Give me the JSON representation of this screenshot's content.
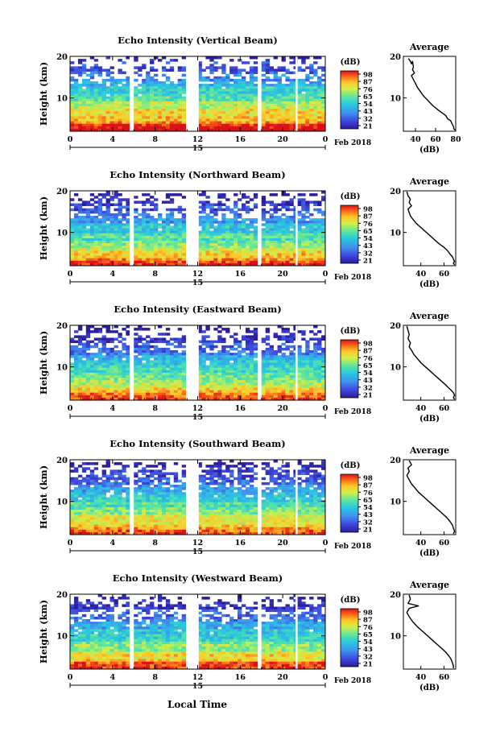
{
  "page": {
    "bottom_xlabel": "Local Time"
  },
  "chart_data": [
    {
      "type": "heatmap",
      "title": "Echo Intensity (Vertical Beam)",
      "ylabel": "Height (km)",
      "yticks": [
        "20",
        "10"
      ],
      "xticks": [
        "0",
        "4",
        "8",
        "12",
        "16",
        "20",
        "0"
      ],
      "date_tick": "15",
      "date_label": "Feb 2018",
      "colorbar": {
        "unit": "(dB)",
        "labels": [
          "98",
          "87",
          "76",
          "65",
          "54",
          "43",
          "32",
          "21"
        ]
      },
      "ylim": [
        2,
        20
      ],
      "xlim": [
        0,
        24
      ],
      "data_gaps_hours": [
        [
          5.6,
          5.9
        ],
        [
          11.0,
          12.1
        ],
        [
          17.7,
          17.9
        ],
        [
          21.2,
          21.4
        ]
      ],
      "profile": {
        "title": "Average",
        "xlabel": "(dB)",
        "xticks": [
          "40",
          "60",
          "80"
        ],
        "yticks": [
          "20",
          "10"
        ],
        "xlim": [
          28,
          80
        ],
        "ylim": [
          2,
          20
        ],
        "x": [
          33,
          35,
          36,
          37,
          38,
          37,
          39,
          36,
          38,
          40,
          42,
          45,
          48,
          52,
          55,
          58,
          62,
          66,
          70,
          72,
          75,
          76,
          77,
          78,
          78,
          80
        ],
        "y": [
          19.5,
          18.8,
          18.2,
          18.8,
          17.4,
          16.8,
          16.0,
          15.4,
          14.4,
          13.5,
          12.5,
          11.5,
          10.5,
          9.5,
          8.7,
          8.0,
          7.2,
          6.5,
          5.8,
          5.0,
          4.5,
          4.0,
          3.5,
          3.0,
          2.6,
          2.2
        ]
      }
    },
    {
      "type": "heatmap",
      "title": "Echo Intensity (Northward Beam)",
      "ylabel": "Height (km)",
      "yticks": [
        "20",
        "10"
      ],
      "xticks": [
        "0",
        "4",
        "8",
        "12",
        "16",
        "20",
        "0"
      ],
      "date_tick": "15",
      "date_label": "Feb 2018",
      "colorbar": {
        "unit": "(dB)",
        "labels": [
          "98",
          "87",
          "76",
          "65",
          "54",
          "43",
          "32",
          "21"
        ]
      },
      "ylim": [
        2,
        20
      ],
      "xlim": [
        0,
        24
      ],
      "data_gaps_hours": [
        [
          5.6,
          5.9
        ],
        [
          11.0,
          12.1
        ],
        [
          17.7,
          17.9
        ],
        [
          21.2,
          21.4
        ]
      ],
      "profile": {
        "title": "Average",
        "xlabel": "(dB)",
        "xticks": [
          "40",
          "60"
        ],
        "yticks": [
          "20",
          "10"
        ],
        "xlim": [
          25,
          70
        ],
        "ylim": [
          2,
          20
        ],
        "x": [
          28,
          29,
          31,
          30,
          32,
          29,
          30,
          31,
          33,
          36,
          40,
          44,
          48,
          52,
          56,
          60,
          63,
          65,
          67,
          68,
          69,
          68,
          69
        ],
        "y": [
          19.8,
          18.8,
          18.0,
          17.2,
          16.4,
          15.6,
          14.8,
          14.0,
          13.2,
          12.2,
          11.2,
          10.2,
          9.2,
          8.2,
          7.2,
          6.4,
          5.6,
          4.8,
          4.2,
          3.6,
          3.0,
          2.6,
          2.2
        ]
      }
    },
    {
      "type": "heatmap",
      "title": "Echo Intensity (Eastward Beam)",
      "ylabel": "Height (km)",
      "yticks": [
        "20",
        "10"
      ],
      "xticks": [
        "0",
        "4",
        "8",
        "12",
        "16",
        "20",
        "0"
      ],
      "date_tick": "15",
      "date_label": "Feb 2018",
      "colorbar": {
        "unit": "(dB)",
        "labels": [
          "98",
          "87",
          "76",
          "65",
          "54",
          "43",
          "32",
          "21"
        ]
      },
      "ylim": [
        2,
        20
      ],
      "xlim": [
        0,
        24
      ],
      "data_gaps_hours": [
        [
          5.6,
          5.9
        ],
        [
          11.0,
          12.1
        ],
        [
          17.7,
          17.9
        ],
        [
          21.2,
          21.4
        ]
      ],
      "profile": {
        "title": "Average",
        "xlabel": "(dB)",
        "xticks": [
          "40",
          "60"
        ],
        "yticks": [
          "20",
          "10"
        ],
        "xlim": [
          25,
          70
        ],
        "ylim": [
          2,
          20
        ],
        "x": [
          28,
          29,
          30,
          29,
          31,
          30,
          32,
          34,
          37,
          40,
          44,
          48,
          52,
          56,
          60,
          63,
          66,
          68,
          69,
          68,
          69
        ],
        "y": [
          19.8,
          18.8,
          17.8,
          16.8,
          15.8,
          14.8,
          14.0,
          13.0,
          12.0,
          11.0,
          10.0,
          9.0,
          8.0,
          7.0,
          6.0,
          5.2,
          4.4,
          3.8,
          3.2,
          2.6,
          2.2
        ]
      }
    },
    {
      "type": "heatmap",
      "title": "Echo Intensity (Southward Beam)",
      "ylabel": "Height (km)",
      "yticks": [
        "20",
        "10"
      ],
      "xticks": [
        "0",
        "4",
        "8",
        "12",
        "16",
        "20",
        "0"
      ],
      "date_tick": "15",
      "date_label": "Feb 2018",
      "colorbar": {
        "unit": "(dB)",
        "labels": [
          "98",
          "87",
          "76",
          "65",
          "54",
          "43",
          "32",
          "21"
        ]
      },
      "ylim": [
        2,
        20
      ],
      "xlim": [
        0,
        24
      ],
      "data_gaps_hours": [
        [
          5.6,
          5.9
        ],
        [
          11.0,
          12.1
        ],
        [
          17.7,
          17.9
        ],
        [
          21.2,
          21.4
        ]
      ],
      "profile": {
        "title": "Average",
        "xlabel": "(dB)",
        "xticks": [
          "40",
          "60"
        ],
        "yticks": [
          "20",
          "10"
        ],
        "xlim": [
          25,
          70
        ],
        "ylim": [
          2,
          20
        ],
        "x": [
          30,
          32,
          29,
          30,
          28,
          30,
          32,
          35,
          38,
          42,
          46,
          50,
          54,
          58,
          62,
          65,
          67,
          68,
          69,
          68
        ],
        "y": [
          19.8,
          18.8,
          18.0,
          17.2,
          16.2,
          15.2,
          14.2,
          13.2,
          12.2,
          11.2,
          10.2,
          9.2,
          8.2,
          7.2,
          6.2,
          5.2,
          4.4,
          3.6,
          2.8,
          2.2
        ]
      }
    },
    {
      "type": "heatmap",
      "title": "Echo Intensity (Westward Beam)",
      "ylabel": "Height (km)",
      "yticks": [
        "20",
        "10"
      ],
      "xticks": [
        "0",
        "4",
        "8",
        "12",
        "16",
        "20",
        "0"
      ],
      "date_tick": "15",
      "date_label": "Feb 2018",
      "colorbar": {
        "unit": "(dB)",
        "labels": [
          "98",
          "87",
          "76",
          "65",
          "54",
          "43",
          "32",
          "21"
        ]
      },
      "ylim": [
        2,
        20
      ],
      "xlim": [
        0,
        24
      ],
      "data_gaps_hours": [
        [
          5.6,
          5.9
        ],
        [
          11.0,
          12.1
        ],
        [
          17.7,
          17.9
        ],
        [
          21.2,
          21.4
        ]
      ],
      "profile": {
        "title": "Average",
        "xlabel": "(dB)",
        "xticks": [
          "40",
          "60"
        ],
        "yticks": [
          "20",
          "10"
        ],
        "xlim": [
          25,
          70
        ],
        "ylim": [
          2,
          20
        ],
        "x": [
          30,
          31,
          29,
          38,
          30,
          28,
          30,
          33,
          37,
          41,
          45,
          49,
          53,
          57,
          61,
          64,
          66,
          67,
          68,
          68
        ],
        "y": [
          19.8,
          18.8,
          17.8,
          17.2,
          16.6,
          15.6,
          14.6,
          13.4,
          12.2,
          11.2,
          10.2,
          9.2,
          8.2,
          7.2,
          6.2,
          5.2,
          4.4,
          3.6,
          2.8,
          2.2
        ]
      }
    }
  ]
}
